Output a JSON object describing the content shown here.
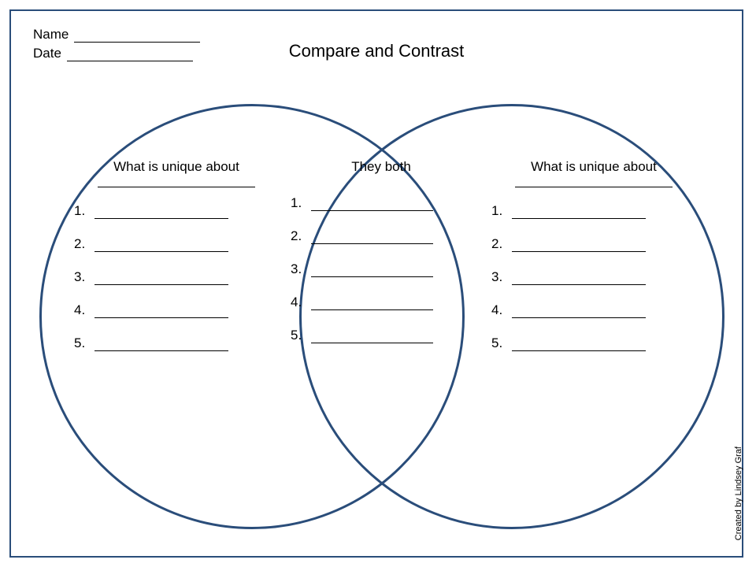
{
  "header": {
    "name_label": "Name",
    "date_label": "Date"
  },
  "title": "Compare and Contrast",
  "venn": {
    "circle_color": "#2a4d7a",
    "circle_stroke_width": 3,
    "left": {
      "heading": "What is unique about",
      "items": [
        "1.",
        "2.",
        "3.",
        "4.",
        "5."
      ]
    },
    "center": {
      "heading": "They both",
      "items": [
        "1.",
        "2.",
        "3.",
        "4.",
        "5."
      ]
    },
    "right": {
      "heading": "What is unique about",
      "items": [
        "1.",
        "2.",
        "3.",
        "4.",
        "5."
      ]
    }
  },
  "credit": "Created by Lindsey Graf",
  "colors": {
    "frame_border": "#2a4d7a",
    "text": "#000000",
    "background": "#ffffff"
  },
  "typography": {
    "font_family": "Comic Sans MS",
    "title_size_pt": 22,
    "body_size_pt": 17,
    "credit_size_pt": 11
  }
}
